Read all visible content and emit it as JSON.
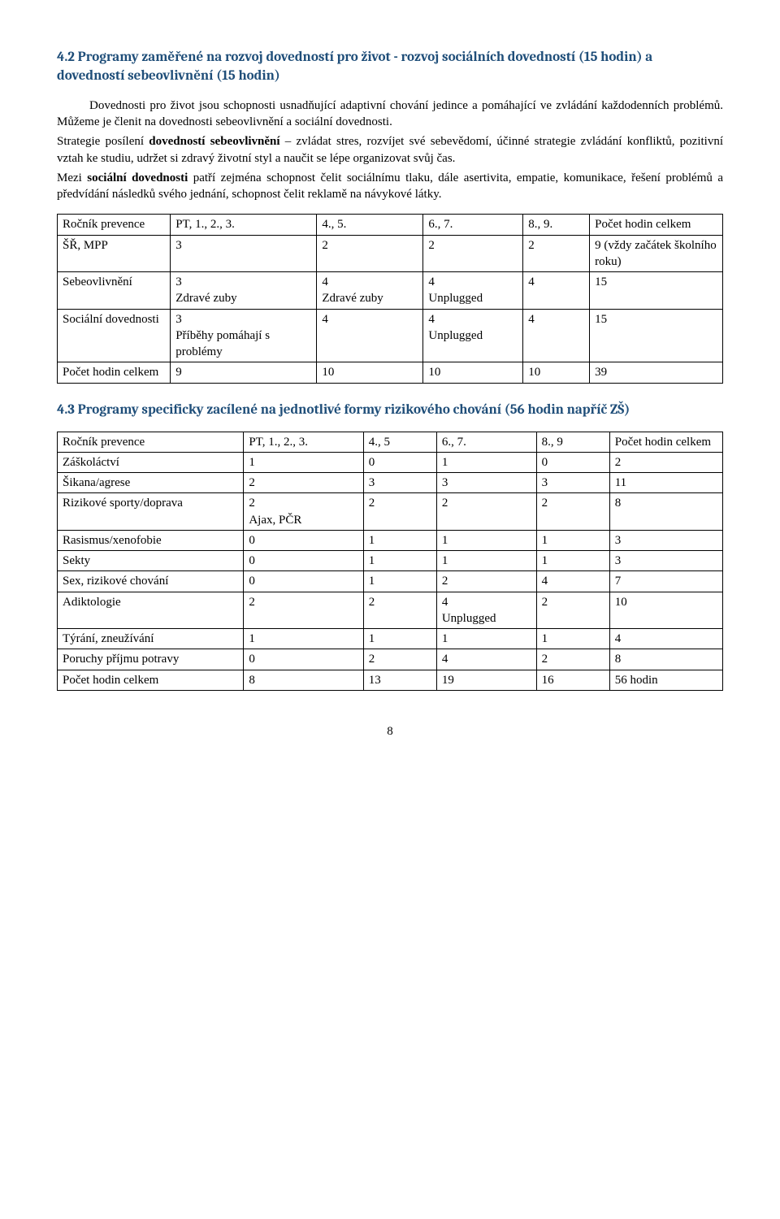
{
  "section42": {
    "heading": "4.2 Programy zaměřené na rozvoj dovedností pro život - rozvoj sociálních dovedností (15 hodin) a dovedností sebeovlivnění (15 hodin)",
    "intro": "Dovednosti pro život jsou schopnosti usnadňující adaptivní chování jedince a pomáhající ve zvládání každodenních problémů. Můžeme je členit na dovednosti sebeovlivnění a sociální dovednosti.",
    "p2a": "Strategie posílení ",
    "p2b": "dovedností sebeovlivnění",
    "p2c": " – zvládat stres, rozvíjet své sebevědomí, účinné strategie zvládání konfliktů, pozitivní vztah ke studiu, udržet si zdravý životní styl a naučit se lépe organizovat svůj čas.",
    "p3a": "Mezi ",
    "p3b": "sociální dovednosti",
    "p3c": " patří zejména schopnost čelit sociálnímu tlaku, dále asertivita, empatie, komunikace, řešení problémů a předvídání následků svého jednání, schopnost čelit reklamě na návykové látky."
  },
  "table1": {
    "header": [
      "Ročník prevence",
      "PT, 1., 2., 3.",
      "4., 5.",
      "6., 7.",
      "8., 9.",
      "Počet hodin celkem"
    ],
    "rows": [
      [
        "ŠŘ, MPP",
        "3",
        "2",
        "2",
        "2",
        "9 (vždy začátek školního roku)"
      ],
      [
        "Sebeovlivnění",
        "3\nZdravé zuby",
        "4\nZdravé zuby",
        "4\nUnplugged",
        "4",
        "15"
      ],
      [
        "Sociální dovednosti",
        "3\nPříběhy pomáhají s problémy",
        "4",
        "4\nUnplugged",
        "4",
        "15"
      ],
      [
        "Počet hodin celkem",
        "9",
        "10",
        "10",
        "10",
        "39"
      ]
    ],
    "col_widths": [
      "17%",
      "22%",
      "16%",
      "15%",
      "10%",
      "20%"
    ]
  },
  "section43": {
    "heading": "4.3 Programy specificky zacílené na jednotlivé formy rizikového chování (56 hodin napříč ZŠ)"
  },
  "table2": {
    "header": [
      "Ročník prevence",
      "PT, 1., 2., 3.",
      "4., 5",
      "6., 7.",
      "8., 9",
      "Počet hodin celkem"
    ],
    "rows": [
      [
        "Záškoláctví",
        "1",
        "0",
        "1",
        "0",
        "2"
      ],
      [
        "Šikana/agrese",
        "2",
        "3",
        "3",
        "3",
        "11"
      ],
      [
        "Rizikové sporty/doprava",
        "2\nAjax, PČR",
        "2",
        "2",
        "2",
        "8"
      ],
      [
        "Rasismus/xenofobie",
        "0",
        "1",
        "1",
        "1",
        "3"
      ],
      [
        "Sekty",
        "0",
        "1",
        "1",
        "1",
        "3"
      ],
      [
        "Sex, rizikové chování",
        "0",
        "1",
        "2",
        "4",
        "7"
      ],
      [
        "Adiktologie",
        "2",
        "2",
        "4\nUnplugged",
        "2",
        "10"
      ],
      [
        "Týrání, zneužívání",
        "1",
        "1",
        "1",
        "1",
        "4"
      ],
      [
        "Poruchy příjmu potravy",
        "0",
        "2",
        "4",
        "2",
        "8"
      ],
      [
        "Počet hodin celkem",
        "8",
        "13",
        "19",
        "16",
        "56 hodin"
      ]
    ],
    "col_widths": [
      "28%",
      "18%",
      "11%",
      "15%",
      "11%",
      "17%"
    ]
  },
  "page_number": "8"
}
